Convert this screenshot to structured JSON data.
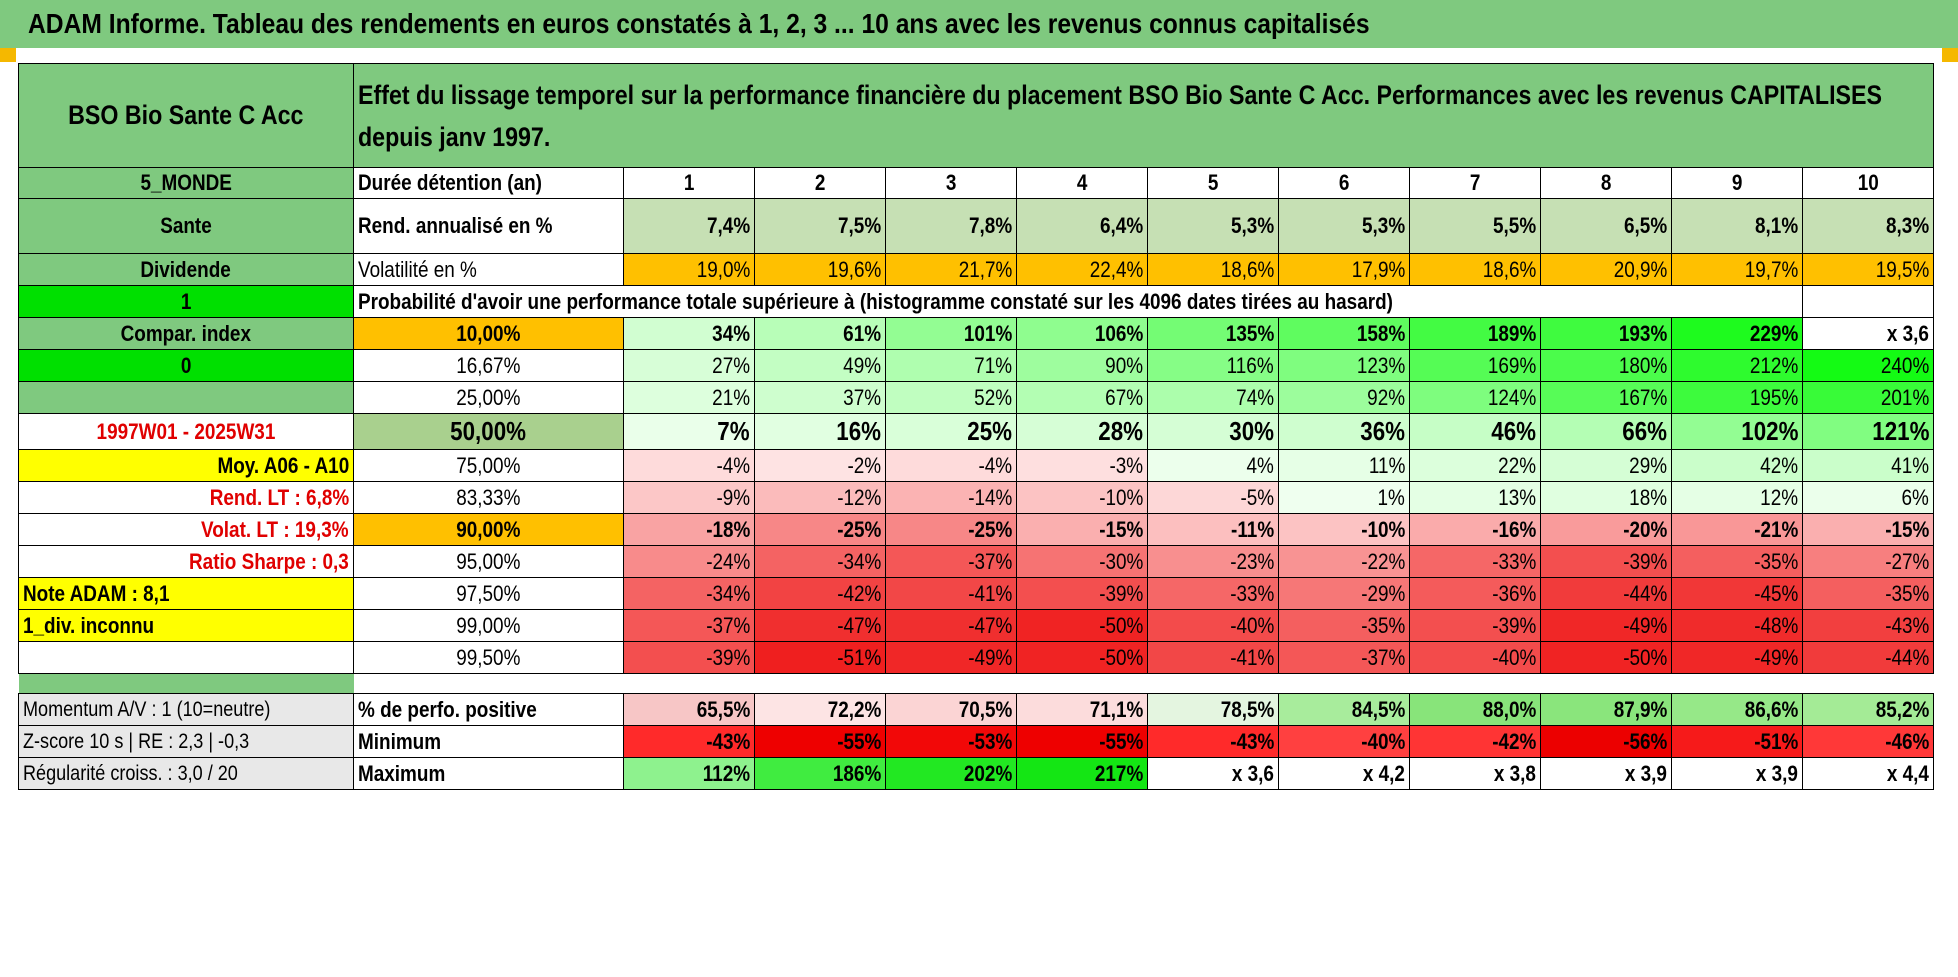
{
  "title": "ADAM Informe. Tableau des rendements en euros constatés à 1, 2, 3 ... 10 ans avec les revenus connus capitalisés",
  "fund_name": "BSO Bio Sante C Acc",
  "header_text": "Effet du lissage temporel sur la performance financière du placement BSO Bio Sante C Acc. Performances avec les revenus CAPITALISES depuis janv 1997.",
  "left_panel": {
    "zone": "5_MONDE",
    "sector": "Sante",
    "distribution": "Dividende",
    "flag1": "1",
    "compar_index": "Compar. index",
    "flag0": "0",
    "period": "1997W01 - 2025W31",
    "moy": "Moy. A06 - A10",
    "rend_lt": "Rend. LT :    6,8%",
    "volat_lt": "Volat. LT :    19,3%",
    "sharpe": "Ratio Sharpe :    0,3",
    "note": "Note ADAM : 8,1",
    "div": "1_div. inconnu"
  },
  "columns": {
    "label": "Durée détention (an)",
    "years": [
      "1",
      "2",
      "3",
      "4",
      "5",
      "6",
      "7",
      "8",
      "9",
      "10"
    ]
  },
  "rend": {
    "label": "Rend. annualisé en %",
    "values": [
      "7,4%",
      "7,5%",
      "7,8%",
      "6,4%",
      "5,3%",
      "5,3%",
      "5,5%",
      "6,5%",
      "8,1%",
      "8,3%"
    ]
  },
  "vol": {
    "label": "Volatilité en %",
    "values": [
      "19,0%",
      "19,6%",
      "21,7%",
      "22,4%",
      "18,6%",
      "17,9%",
      "18,6%",
      "20,9%",
      "19,7%",
      "19,5%"
    ]
  },
  "prob_title": "Probabilité d'avoir une performance totale supérieure à (histogramme constaté sur les 4096 dates tirées au hasard)",
  "percentiles": [
    {
      "p": "10,00%",
      "values": [
        "34%",
        "61%",
        "101%",
        "106%",
        "135%",
        "158%",
        "189%",
        "193%",
        "229%",
        "x 3,6"
      ]
    },
    {
      "p": "16,67%",
      "values": [
        "27%",
        "49%",
        "71%",
        "90%",
        "116%",
        "123%",
        "169%",
        "180%",
        "212%",
        "240%"
      ]
    },
    {
      "p": "25,00%",
      "values": [
        "21%",
        "37%",
        "52%",
        "67%",
        "74%",
        "92%",
        "124%",
        "167%",
        "195%",
        "201%"
      ]
    },
    {
      "p": "50,00%",
      "values": [
        "7%",
        "16%",
        "25%",
        "28%",
        "30%",
        "36%",
        "46%",
        "66%",
        "102%",
        "121%"
      ]
    },
    {
      "p": "75,00%",
      "values": [
        "-4%",
        "-2%",
        "-4%",
        "-3%",
        "4%",
        "11%",
        "22%",
        "29%",
        "42%",
        "41%"
      ]
    },
    {
      "p": "83,33%",
      "values": [
        "-9%",
        "-12%",
        "-14%",
        "-10%",
        "-5%",
        "1%",
        "13%",
        "18%",
        "12%",
        "6%"
      ]
    },
    {
      "p": "90,00%",
      "values": [
        "-18%",
        "-25%",
        "-25%",
        "-15%",
        "-11%",
        "-10%",
        "-16%",
        "-20%",
        "-21%",
        "-15%"
      ]
    },
    {
      "p": "95,00%",
      "values": [
        "-24%",
        "-34%",
        "-37%",
        "-30%",
        "-23%",
        "-22%",
        "-33%",
        "-39%",
        "-35%",
        "-27%"
      ]
    },
    {
      "p": "97,50%",
      "values": [
        "-34%",
        "-42%",
        "-41%",
        "-39%",
        "-33%",
        "-29%",
        "-36%",
        "-44%",
        "-45%",
        "-35%"
      ]
    },
    {
      "p": "99,00%",
      "values": [
        "-37%",
        "-47%",
        "-47%",
        "-50%",
        "-40%",
        "-35%",
        "-39%",
        "-49%",
        "-48%",
        "-43%"
      ]
    },
    {
      "p": "99,50%",
      "values": [
        "-39%",
        "-51%",
        "-49%",
        "-50%",
        "-41%",
        "-37%",
        "-40%",
        "-50%",
        "-49%",
        "-44%"
      ]
    }
  ],
  "bottom": [
    {
      "left": "Momentum A/V : 1 (10=neutre)",
      "label": "% de perfo. positive",
      "values": [
        "65,5%",
        "72,2%",
        "70,5%",
        "71,1%",
        "78,5%",
        "84,5%",
        "88,0%",
        "87,9%",
        "86,6%",
        "85,2%"
      ]
    },
    {
      "left": "Z-score 10 s | RE : 2,3 | -0,3",
      "label": "Minimum",
      "values": [
        "-43%",
        "-55%",
        "-53%",
        "-55%",
        "-43%",
        "-40%",
        "-42%",
        "-56%",
        "-51%",
        "-46%"
      ]
    },
    {
      "left": "Régularité croiss. : 3,0 / 20",
      "label": "Maximum",
      "values": [
        "112%",
        "186%",
        "202%",
        "217%",
        "x 3,6",
        "x 4,2",
        "x 3,8",
        "x 3,9",
        "x 3,9",
        "x 4,4"
      ]
    }
  ],
  "colors": {
    "header_green": "#7fc97f",
    "light_green": "#c6e0b4",
    "orange": "#ffc000",
    "yellow": "#ffff00",
    "bright_green": "#00e000",
    "red_text": "#e00000"
  }
}
